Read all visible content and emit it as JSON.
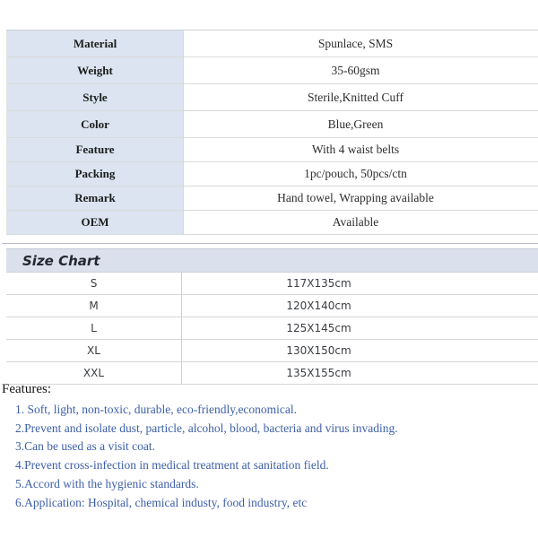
{
  "colors": {
    "spec_label_bg": "#dbe4f0",
    "size_bar_bg": "#dae1ec",
    "feature_text": "#3d5fa9",
    "border": "#dadada"
  },
  "spec_table": {
    "rows": [
      {
        "label": "Material",
        "value": "Spunlace, SMS"
      },
      {
        "label": "Weight",
        "value": "35-60gsm"
      },
      {
        "label": "Style",
        "value": "Sterile,Knitted Cuff"
      },
      {
        "label": "Color",
        "value": "Blue,Green"
      },
      {
        "label": "Feature",
        "value": "With 4 waist belts"
      },
      {
        "label": "Packing",
        "value": "1pc/pouch, 50pcs/ctn"
      },
      {
        "label": "Remark",
        "value": "Hand towel, Wrapping available"
      },
      {
        "label": "OEM",
        "value": "Available"
      }
    ]
  },
  "size_chart": {
    "title": "Size Chart",
    "rows": [
      {
        "size": "S",
        "dimension": "117X135cm"
      },
      {
        "size": "M",
        "dimension": "120X140cm"
      },
      {
        "size": "L",
        "dimension": "125X145cm"
      },
      {
        "size": "XL",
        "dimension": "130X150cm"
      },
      {
        "size": "XXL",
        "dimension": "135X155cm"
      }
    ]
  },
  "features": {
    "heading": "Features:",
    "items": [
      "1. Soft, light, non-toxic, durable, eco-friendly,economical.",
      "2.Prevent and isolate dust, particle, alcohol, blood, bacteria and virus invading.",
      "3.Can be used as a visit coat.",
      "4.Prevent cross-infection in medical treatment at sanitation field.",
      "5.Accord with the hygienic standards.",
      "6.Application: Hospital, chemical industy, food industry, etc"
    ]
  }
}
